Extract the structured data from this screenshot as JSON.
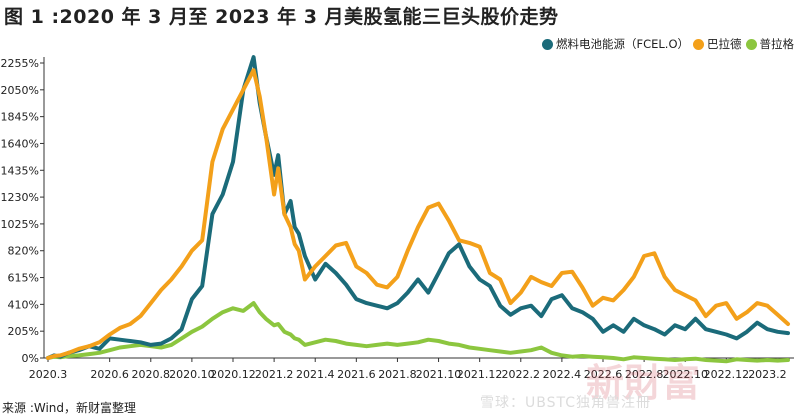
{
  "title": "图 1 :2020 年 3 月至 2023 年 3 月美股氢能三巨头股价走势",
  "source": "来源 :Wind，新财富整理",
  "watermark": "雪球：UBSTC独角兽注冊",
  "brand": "新財富",
  "colors": {
    "fcel": "#1b6b7a",
    "bldp": "#f3a01a",
    "plug": "#8cc63f",
    "axis": "#333333"
  },
  "chart_data": {
    "type": "line",
    "title": "图 1 :2020 年 3 月至 2023 年 3 月美股氢能三巨头股价走势",
    "xlabel": "",
    "ylabel": "",
    "x_ticks": [
      "2020.3",
      "2020.6",
      "2020.8",
      "2020.10",
      "2020.12",
      "2021.2",
      "2021.4",
      "2021.6",
      "2021.8",
      "2021.10",
      "2021.12",
      "2022.2",
      "2022.4",
      "2022.6",
      "2022.8",
      "2022.10",
      "2022.12",
      "2023.2"
    ],
    "y_ticks": [
      "0%",
      "205%",
      "410%",
      "615%",
      "820%",
      "1025%",
      "1230%",
      "1435%",
      "1640%",
      "1845%",
      "2050%",
      "2255%"
    ],
    "ylim": [
      0,
      2255
    ],
    "legend_position": "top-right",
    "series": [
      {
        "name": "燃料电池能源（FCEL.O）",
        "color": "#1b6b7a",
        "x": [
          0,
          0.3,
          0.6,
          1,
          1.5,
          2,
          2.5,
          3,
          3.5,
          4,
          4.5,
          5,
          5.5,
          6,
          6.5,
          7,
          7.5,
          8,
          8.5,
          9,
          9.5,
          10,
          10.3,
          10.6,
          11,
          11.2,
          11.5,
          11.8,
          12,
          12.2,
          12.5,
          13,
          13.5,
          14,
          14.5,
          15,
          15.5,
          16,
          16.5,
          17,
          17.5,
          18,
          18.5,
          19,
          19.5,
          20,
          20.5,
          21,
          21.5,
          22,
          22.5,
          23,
          23.5,
          24,
          24.5,
          25,
          25.5,
          26,
          26.5,
          27,
          27.5,
          28,
          28.5,
          29,
          29.5,
          30,
          30.5,
          31,
          31.5,
          32,
          32.5,
          33,
          33.5,
          34,
          34.5,
          35,
          35.5,
          36
        ],
        "values": [
          0,
          20,
          10,
          40,
          60,
          90,
          70,
          150,
          140,
          130,
          120,
          100,
          110,
          150,
          220,
          450,
          550,
          1100,
          1250,
          1500,
          2050,
          2300,
          1950,
          1700,
          1400,
          1550,
          1100,
          1200,
          1000,
          950,
          780,
          600,
          720,
          650,
          560,
          450,
          420,
          400,
          380,
          420,
          500,
          600,
          500,
          650,
          800,
          870,
          700,
          600,
          550,
          400,
          330,
          380,
          400,
          320,
          450,
          480,
          380,
          350,
          300,
          200,
          250,
          200,
          300,
          250,
          220,
          180,
          250,
          220,
          300,
          220,
          200,
          180,
          150,
          200,
          270,
          220,
          200,
          190
        ],
        "label_count": 78
      },
      {
        "name": "巴拉德",
        "color": "#f3a01a",
        "x": [
          0,
          0.3,
          0.6,
          1,
          1.5,
          2,
          2.5,
          3,
          3.5,
          4,
          4.5,
          5,
          5.5,
          6,
          6.5,
          7,
          7.5,
          8,
          8.5,
          9,
          9.5,
          10,
          10.3,
          10.6,
          11,
          11.2,
          11.5,
          11.8,
          12,
          12.2,
          12.5,
          13,
          13.5,
          14,
          14.5,
          15,
          15.5,
          16,
          16.5,
          17,
          17.5,
          18,
          18.5,
          19,
          19.5,
          20,
          20.5,
          21,
          21.5,
          22,
          22.5,
          23,
          23.5,
          24,
          24.5,
          25,
          25.5,
          26,
          26.5,
          27,
          27.5,
          28,
          28.5,
          29,
          29.5,
          30,
          30.5,
          31,
          31.5,
          32,
          32.5,
          33,
          33.5,
          34,
          34.5,
          35,
          35.5,
          36
        ],
        "values": [
          0,
          15,
          20,
          40,
          70,
          90,
          120,
          180,
          230,
          260,
          320,
          420,
          520,
          600,
          700,
          820,
          900,
          1500,
          1750,
          1900,
          2050,
          2200,
          2000,
          1700,
          1250,
          1450,
          1100,
          1000,
          870,
          820,
          600,
          700,
          780,
          860,
          880,
          700,
          650,
          560,
          540,
          620,
          820,
          1000,
          1150,
          1180,
          1050,
          900,
          880,
          850,
          650,
          600,
          420,
          500,
          620,
          580,
          550,
          650,
          660,
          540,
          400,
          460,
          440,
          520,
          620,
          780,
          800,
          620,
          520,
          480,
          440,
          320,
          400,
          420,
          300,
          350,
          420,
          400,
          330,
          260
        ]
      },
      {
        "name": "普拉格",
        "color": "#8cc63f",
        "x": [
          0,
          0.3,
          0.6,
          1,
          1.5,
          2,
          2.5,
          3,
          3.5,
          4,
          4.5,
          5,
          5.5,
          6,
          6.5,
          7,
          7.5,
          8,
          8.5,
          9,
          9.5,
          10,
          10.3,
          10.6,
          11,
          11.2,
          11.5,
          11.8,
          12,
          12.2,
          12.5,
          13,
          13.5,
          14,
          14.5,
          15,
          15.5,
          16,
          16.5,
          17,
          17.5,
          18,
          18.5,
          19,
          19.5,
          20,
          20.5,
          21,
          21.5,
          22,
          22.5,
          23,
          23.5,
          24,
          24.5,
          25,
          25.5,
          26,
          26.5,
          27,
          27.5,
          28,
          28.5,
          29,
          29.5,
          30,
          30.5,
          31,
          31.5,
          32,
          32.5,
          33,
          33.5,
          34,
          34.5,
          35,
          35.5,
          36
        ],
        "values": [
          0,
          10,
          5,
          15,
          20,
          30,
          40,
          60,
          80,
          90,
          100,
          90,
          80,
          100,
          150,
          200,
          240,
          300,
          350,
          380,
          360,
          420,
          350,
          300,
          250,
          260,
          200,
          180,
          150,
          140,
          100,
          120,
          140,
          130,
          110,
          100,
          90,
          100,
          110,
          100,
          110,
          120,
          140,
          130,
          110,
          100,
          80,
          70,
          60,
          50,
          40,
          50,
          60,
          80,
          40,
          20,
          10,
          15,
          10,
          5,
          0,
          -10,
          5,
          0,
          -5,
          -10,
          -15,
          -10,
          -5,
          -15,
          -20,
          -25,
          -10,
          -15,
          -20,
          -15,
          -20,
          -15
        ]
      }
    ]
  }
}
